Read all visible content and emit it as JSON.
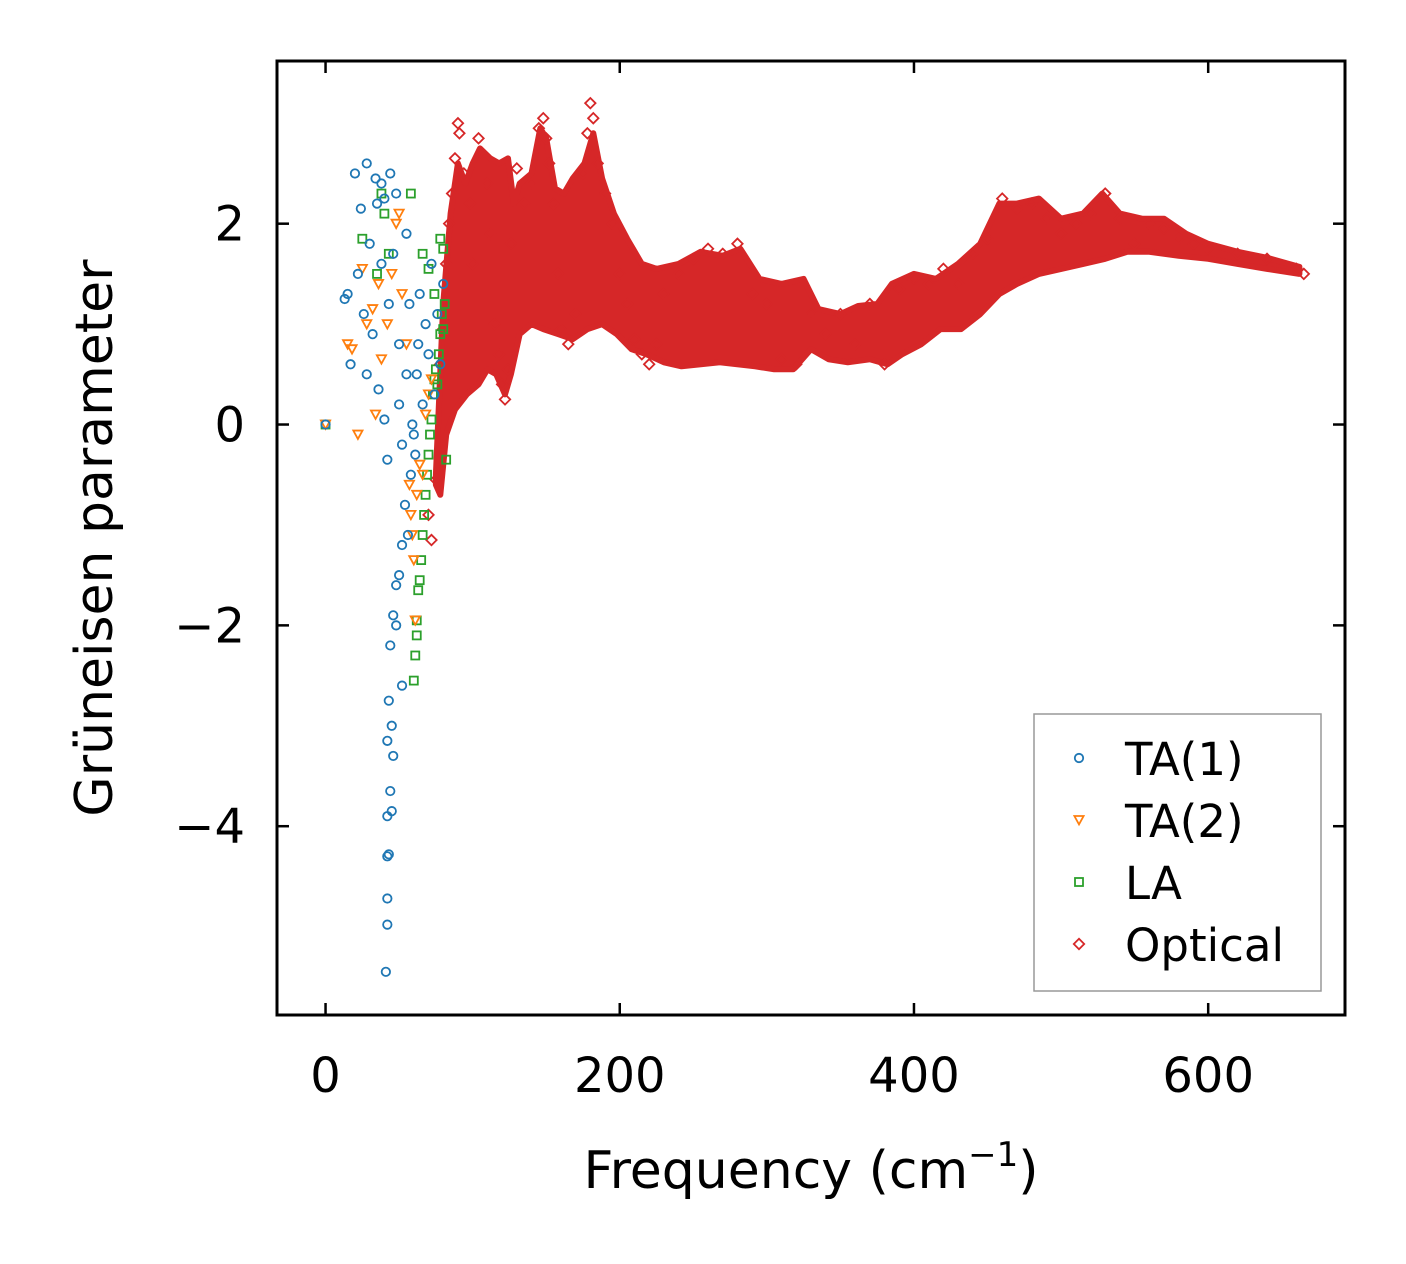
{
  "chart_data": {
    "type": "scatter",
    "title": "",
    "xlabel": "Frequency (cm",
    "xlabel_sup": "−1",
    "xlabel_suffix": ")",
    "ylabel": "Grüneisen parameter",
    "xlim": [
      -33,
      693
    ],
    "ylim": [
      -5.88,
      3.62
    ],
    "xticks": [
      {
        "value": 0,
        "label": "0"
      },
      {
        "value": 200,
        "label": "200"
      },
      {
        "value": 400,
        "label": "400"
      },
      {
        "value": 600,
        "label": "600"
      }
    ],
    "yticks": [
      {
        "value": 2,
        "label": "2"
      },
      {
        "value": 0,
        "label": "0"
      },
      {
        "value": -2,
        "label": "−2"
      },
      {
        "value": -4,
        "label": "−4"
      }
    ],
    "grid": false,
    "legend_position": "lower-right",
    "series": [
      {
        "name": "TA(1)",
        "marker": "circle",
        "color": "#1f77b4",
        "points": [
          [
            0,
            0
          ],
          [
            13,
            1.25
          ],
          [
            15,
            1.3
          ],
          [
            17,
            0.6
          ],
          [
            20,
            2.5
          ],
          [
            22,
            1.5
          ],
          [
            24,
            2.15
          ],
          [
            26,
            1.1
          ],
          [
            28,
            2.6
          ],
          [
            28,
            0.5
          ],
          [
            30,
            1.8
          ],
          [
            32,
            0.9
          ],
          [
            34,
            2.45
          ],
          [
            35,
            2.2
          ],
          [
            36,
            0.35
          ],
          [
            38,
            2.4
          ],
          [
            38,
            1.6
          ],
          [
            40,
            2.25
          ],
          [
            40,
            0.05
          ],
          [
            42,
            -0.35
          ],
          [
            43,
            1.2
          ],
          [
            44,
            2.5
          ],
          [
            46,
            1.7
          ],
          [
            48,
            2.3
          ],
          [
            50,
            0.8
          ],
          [
            52,
            -0.2
          ],
          [
            54,
            -0.8
          ],
          [
            55,
            1.9
          ],
          [
            56,
            -1.1
          ],
          [
            58,
            -0.5
          ],
          [
            52,
            -1.2
          ],
          [
            50,
            -1.5
          ],
          [
            48,
            -1.6
          ],
          [
            46,
            -1.9
          ],
          [
            44,
            -2.2
          ],
          [
            48,
            -2.0
          ],
          [
            52,
            -2.6
          ],
          [
            43,
            -2.75
          ],
          [
            45,
            -3.0
          ],
          [
            46,
            -3.3
          ],
          [
            42,
            -3.15
          ],
          [
            44,
            -3.65
          ],
          [
            42,
            -3.9
          ],
          [
            45,
            -3.85
          ],
          [
            42,
            -4.3
          ],
          [
            43,
            -4.28
          ],
          [
            42,
            -4.72
          ],
          [
            42,
            -4.98
          ],
          [
            41,
            -5.45
          ],
          [
            60,
            -0.1
          ],
          [
            62,
            0.5
          ],
          [
            64,
            1.3
          ],
          [
            66,
            0.2
          ],
          [
            68,
            1.0
          ],
          [
            70,
            0.7
          ],
          [
            72,
            1.6
          ],
          [
            74,
            0.3
          ],
          [
            76,
            1.1
          ],
          [
            78,
            0.6
          ],
          [
            80,
            1.4
          ],
          [
            50,
            0.2
          ],
          [
            55,
            0.5
          ],
          [
            57,
            1.2
          ],
          [
            59,
            0.0
          ],
          [
            61,
            -0.3
          ],
          [
            63,
            0.8
          ]
        ]
      },
      {
        "name": "TA(2)",
        "marker": "triangle-down",
        "color": "#ff7f0e",
        "points": [
          [
            0,
            0
          ],
          [
            15,
            0.8
          ],
          [
            18,
            0.75
          ],
          [
            22,
            -0.1
          ],
          [
            25,
            1.55
          ],
          [
            28,
            1.0
          ],
          [
            32,
            1.15
          ],
          [
            34,
            0.1
          ],
          [
            36,
            1.4
          ],
          [
            38,
            0.65
          ],
          [
            42,
            1.0
          ],
          [
            45,
            1.5
          ],
          [
            48,
            2.0
          ],
          [
            50,
            2.1
          ],
          [
            52,
            1.3
          ],
          [
            55,
            0.8
          ],
          [
            57,
            -0.6
          ],
          [
            58,
            -0.9
          ],
          [
            59,
            -1.1
          ],
          [
            60,
            -1.35
          ],
          [
            61,
            -1.95
          ],
          [
            62,
            -0.7
          ],
          [
            64,
            -0.4
          ],
          [
            66,
            -0.5
          ],
          [
            68,
            0.1
          ],
          [
            70,
            0.3
          ],
          [
            72,
            0.45
          ]
        ]
      },
      {
        "name": "LA",
        "marker": "square",
        "color": "#2ca02c",
        "points": [
          [
            0,
            0
          ],
          [
            25,
            1.85
          ],
          [
            35,
            1.5
          ],
          [
            38,
            2.3
          ],
          [
            40,
            2.1
          ],
          [
            43,
            1.7
          ],
          [
            58,
            2.3
          ],
          [
            60,
            -2.55
          ],
          [
            61,
            -2.3
          ],
          [
            62,
            -2.1
          ],
          [
            62,
            -1.95
          ],
          [
            63,
            -1.65
          ],
          [
            64,
            -1.55
          ],
          [
            65,
            -1.35
          ],
          [
            66,
            -1.1
          ],
          [
            67,
            -0.9
          ],
          [
            68,
            -0.7
          ],
          [
            69,
            -0.5
          ],
          [
            70,
            -0.3
          ],
          [
            71,
            -0.1
          ],
          [
            72,
            0.05
          ],
          [
            73,
            0.3
          ],
          [
            74,
            0.45
          ],
          [
            75,
            0.55
          ],
          [
            76,
            0.4
          ],
          [
            77,
            0.7
          ],
          [
            78,
            0.9
          ],
          [
            79,
            1.1
          ],
          [
            80,
            0.95
          ],
          [
            81,
            1.2
          ],
          [
            82,
            -0.35
          ],
          [
            66,
            1.7
          ],
          [
            70,
            1.55
          ],
          [
            74,
            1.3
          ],
          [
            78,
            1.85
          ],
          [
            80,
            1.75
          ]
        ]
      },
      {
        "name": "Optical",
        "marker": "diamond",
        "color": "#d62728",
        "points": [
          [
            70,
            -0.9
          ],
          [
            72,
            -1.15
          ],
          [
            75,
            -0.55
          ],
          [
            78,
            0.6
          ],
          [
            80,
            0.95
          ],
          [
            82,
            1.6
          ],
          [
            84,
            2.0
          ],
          [
            86,
            2.3
          ],
          [
            88,
            2.65
          ],
          [
            90,
            3.0
          ],
          [
            91,
            2.9
          ],
          [
            94,
            2.5
          ],
          [
            98,
            2.2
          ],
          [
            100,
            1.6
          ],
          [
            104,
            2.85
          ],
          [
            106,
            2.7
          ],
          [
            110,
            2.4
          ],
          [
            112,
            1.9
          ],
          [
            115,
            1.0
          ],
          [
            118,
            0.7
          ],
          [
            120,
            0.4
          ],
          [
            122,
            0.25
          ],
          [
            124,
            0.55
          ],
          [
            126,
            1.8
          ],
          [
            130,
            2.55
          ],
          [
            135,
            2.2
          ],
          [
            140,
            2.4
          ],
          [
            145,
            2.95
          ],
          [
            148,
            3.05
          ],
          [
            150,
            2.85
          ],
          [
            152,
            2.6
          ],
          [
            155,
            2.2
          ],
          [
            158,
            1.5
          ],
          [
            160,
            0.95
          ],
          [
            165,
            0.8
          ],
          [
            170,
            1.1
          ],
          [
            175,
            2.5
          ],
          [
            178,
            2.9
          ],
          [
            180,
            3.2
          ],
          [
            182,
            3.05
          ],
          [
            185,
            2.6
          ],
          [
            190,
            2.3
          ],
          [
            195,
            2.0
          ],
          [
            200,
            1.5
          ],
          [
            205,
            1.2
          ],
          [
            210,
            0.85
          ],
          [
            215,
            0.7
          ],
          [
            220,
            0.6
          ],
          [
            225,
            0.8
          ],
          [
            230,
            1.3
          ],
          [
            240,
            1.5
          ],
          [
            250,
            1.65
          ],
          [
            260,
            1.75
          ],
          [
            270,
            1.7
          ],
          [
            280,
            1.8
          ],
          [
            290,
            1.3
          ],
          [
            300,
            1.2
          ],
          [
            310,
            0.65
          ],
          [
            320,
            0.6
          ],
          [
            330,
            1.1
          ],
          [
            340,
            0.9
          ],
          [
            350,
            1.1
          ],
          [
            360,
            0.8
          ],
          [
            370,
            1.2
          ],
          [
            380,
            0.6
          ],
          [
            390,
            1.35
          ],
          [
            400,
            1.45
          ],
          [
            410,
            1.4
          ],
          [
            420,
            1.55
          ],
          [
            430,
            1.4
          ],
          [
            440,
            1.7
          ],
          [
            450,
            1.85
          ],
          [
            460,
            2.25
          ],
          [
            470,
            2.15
          ],
          [
            480,
            2.2
          ],
          [
            490,
            2.05
          ],
          [
            500,
            1.9
          ],
          [
            510,
            2.0
          ],
          [
            520,
            2.1
          ],
          [
            530,
            2.3
          ],
          [
            540,
            2.05
          ],
          [
            550,
            1.8
          ],
          [
            560,
            2.0
          ],
          [
            570,
            1.95
          ],
          [
            580,
            1.85
          ],
          [
            590,
            1.8
          ],
          [
            600,
            1.75
          ],
          [
            620,
            1.7
          ],
          [
            640,
            1.65
          ],
          [
            660,
            1.55
          ],
          [
            665,
            1.5
          ]
        ]
      }
    ]
  }
}
